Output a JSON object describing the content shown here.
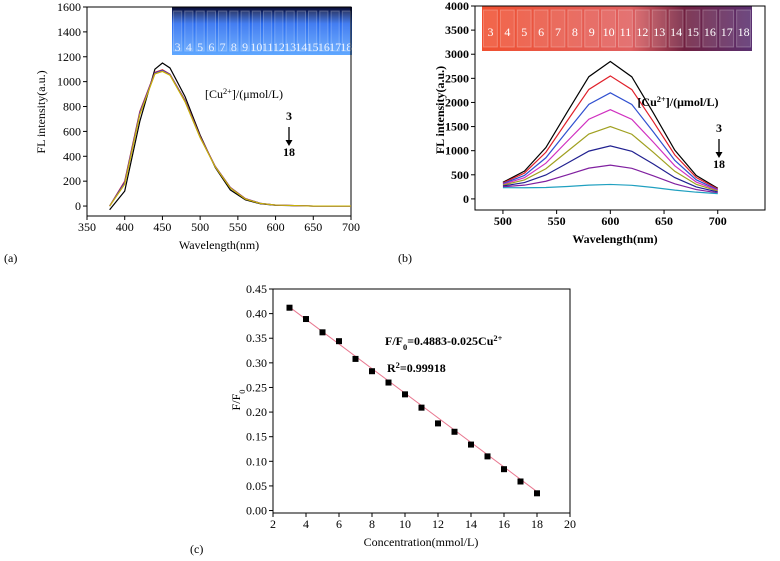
{
  "chart_data": [
    {
      "type": "line",
      "panel_label": "(a)",
      "x_label": "Wavelength(nm)",
      "y_label": "FL intensity(a.u.)",
      "xlim": [
        350,
        700
      ],
      "ylim": [
        -80,
        1600
      ],
      "xticks": [
        350,
        400,
        450,
        500,
        550,
        600,
        650,
        700
      ],
      "yticks": [
        0,
        200,
        400,
        600,
        800,
        1000,
        1200,
        1400,
        1600
      ],
      "x": [
        380,
        400,
        420,
        440,
        450,
        460,
        480,
        500,
        520,
        540,
        560,
        580,
        600,
        650,
        700
      ],
      "series": [
        {
          "color": "#000000",
          "values": [
            -30,
            120,
            680,
            1100,
            1150,
            1110,
            880,
            570,
            310,
            130,
            50,
            18,
            6,
            0,
            0
          ]
        },
        {
          "color": "#d62728",
          "values": [
            0,
            200,
            760,
            1075,
            1095,
            1060,
            850,
            560,
            320,
            150,
            60,
            22,
            8,
            0,
            0
          ]
        },
        {
          "color": "#1f3fbf",
          "values": [
            0,
            190,
            750,
            1070,
            1090,
            1058,
            845,
            555,
            318,
            148,
            58,
            22,
            8,
            0,
            0
          ]
        },
        {
          "color": "#9a3fbf",
          "values": [
            0,
            180,
            740,
            1065,
            1085,
            1055,
            840,
            552,
            316,
            146,
            57,
            21,
            8,
            0,
            0
          ]
        },
        {
          "color": "#c8b400",
          "values": [
            0,
            175,
            735,
            1062,
            1082,
            1052,
            838,
            550,
            315,
            145,
            56,
            21,
            8,
            0,
            0
          ]
        }
      ],
      "legend_title": [
        {
          "text": "[Cu"
        },
        {
          "sup": "2+"
        },
        {
          "text": "]/(μmol/L)"
        }
      ],
      "range_start": "3",
      "range_end": "18",
      "vial_labels": [
        "3",
        "4",
        "5",
        "6",
        "7",
        "8",
        "9",
        "10",
        "11",
        "12",
        "13",
        "14",
        "15",
        "16",
        "17",
        "18"
      ]
    },
    {
      "type": "line",
      "panel_label": "(b)",
      "x_label": "Wavelength(nm)",
      "y_label": "FL intensity(a.u.)",
      "xlim": [
        474,
        744
      ],
      "ylim": [
        -230,
        4000
      ],
      "xticks": [
        500,
        550,
        600,
        650,
        700
      ],
      "yticks": [
        0,
        500,
        1000,
        1500,
        2000,
        2500,
        3000,
        3500,
        4000
      ],
      "x": [
        500,
        520,
        540,
        560,
        580,
        600,
        620,
        640,
        660,
        680,
        700
      ],
      "series": [
        {
          "color": "#000000",
          "values": [
            345,
            575,
            1065,
            1805,
            2534,
            2850,
            2531,
            1785,
            1011,
            484,
            221
          ]
        },
        {
          "color": "#e0202a",
          "values": [
            332,
            535,
            967,
            1623,
            2270,
            2550,
            2267,
            1603,
            913,
            444,
            208
          ]
        },
        {
          "color": "#3050d0",
          "values": [
            317,
            487,
            853,
            1410,
            1961,
            2200,
            1958,
            1390,
            799,
            396,
            192
          ]
        },
        {
          "color": "#d030c0",
          "values": [
            301,
            440,
            740,
            1198,
            1652,
            1850,
            1649,
            1178,
            686,
            349,
            177
          ]
        },
        {
          "color": "#a0a020",
          "values": [
            286,
            393,
            626,
            985,
            1344,
            1500,
            1341,
            966,
            572,
            302,
            162
          ]
        },
        {
          "color": "#202090",
          "values": [
            268,
            339,
            496,
            742,
            991,
            1100,
            988,
            723,
            442,
            248,
            144
          ]
        },
        {
          "color": "#8020a0",
          "values": [
            251,
            285,
            366,
            500,
            638,
            700,
            635,
            480,
            312,
            194,
            126
          ]
        },
        {
          "color": "#20a0c0",
          "values": [
            233,
            231,
            236,
            257,
            285,
            300,
            282,
            237,
            182,
            140,
            109
          ]
        }
      ],
      "legend_title": [
        {
          "text": "[Cu"
        },
        {
          "sup": "2+"
        },
        {
          "text": "]/(μmol/L)"
        }
      ],
      "range_start": "3",
      "range_end": "18",
      "vial_labels": [
        "3",
        "4",
        "5",
        "6",
        "7",
        "8",
        "9",
        "10",
        "11",
        "12",
        "13",
        "14",
        "15",
        "16",
        "17",
        "18"
      ]
    },
    {
      "type": "scatter",
      "panel_label": "(c)",
      "x_label": "Concentration(mmol/L)",
      "y_label": [
        {
          "text": "F/F"
        },
        {
          "sub": "0"
        }
      ],
      "xlim": [
        2,
        20
      ],
      "ylim": [
        -0.005,
        0.45
      ],
      "xticks": [
        2,
        4,
        6,
        8,
        10,
        12,
        14,
        16,
        18,
        20
      ],
      "yticks": [
        {
          "value": 0,
          "label": "0.00"
        },
        {
          "value": 0.05,
          "label": "0.05"
        },
        {
          "value": 0.1,
          "label": "0.10"
        },
        {
          "value": 0.15,
          "label": "0.15"
        },
        {
          "value": 0.2,
          "label": "0.20"
        },
        {
          "value": 0.25,
          "label": "0.25"
        },
        {
          "value": 0.3,
          "label": "0.30"
        },
        {
          "value": 0.35,
          "label": "0.35"
        },
        {
          "value": 0.4,
          "label": "0.40"
        },
        {
          "value": 0.45,
          "label": "0.45"
        }
      ],
      "x": [
        3,
        4,
        5,
        6,
        7,
        8,
        9,
        10,
        11,
        12,
        13,
        14,
        15,
        16,
        17,
        18
      ],
      "values": [
        0.412,
        0.389,
        0.362,
        0.344,
        0.308,
        0.283,
        0.26,
        0.236,
        0.209,
        0.177,
        0.16,
        0.134,
        0.11,
        0.084,
        0.059,
        0.035
      ],
      "color": "#000000",
      "fit": {
        "x": [
          3,
          18
        ],
        "values": [
          0.4133,
          0.0383
        ],
        "color": "#e87890"
      },
      "equation": [
        {
          "text": "F/F"
        },
        {
          "sub": "0"
        },
        {
          "text": "=0.4883-0.025Cu"
        },
        {
          "sup": "2+"
        }
      ],
      "r_squared": [
        {
          "text": "R"
        },
        {
          "sup": "2"
        },
        {
          "text": "=0.99918"
        }
      ]
    }
  ]
}
